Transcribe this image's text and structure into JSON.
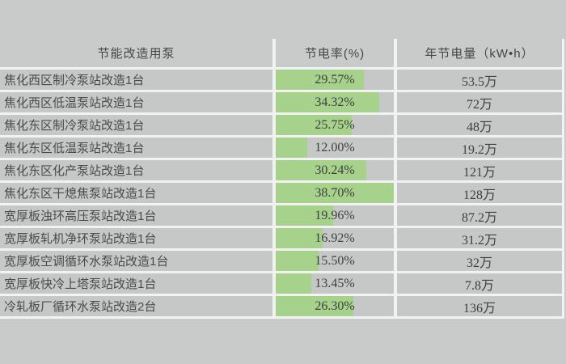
{
  "colors": {
    "page_bg": "#c9cbca",
    "cell_bg": "#c6c8c7",
    "gridline": "#f1f2f1",
    "bar_green": "#a6d28c",
    "label_text": "#4a4a4a"
  },
  "table": {
    "headers": [
      "节能改造用泵",
      "节电率(%)",
      "年节电量（kW•h）"
    ],
    "bar_axis_range": [
      2.4,
      38.7
    ],
    "rows": [
      {
        "pump": "焦化西区制冷泵站改造1台",
        "rate_label": "29.57%",
        "rate_value": 29.57,
        "annual_label": "53.5万"
      },
      {
        "pump": "焦化西区低温泵站改造1台",
        "rate_label": "34.32%",
        "rate_value": 34.32,
        "annual_label": "72万"
      },
      {
        "pump": "焦化东区制冷泵站改造1台",
        "rate_label": "25.75%",
        "rate_value": 25.75,
        "annual_label": "48万"
      },
      {
        "pump": "焦化东区低温泵站改造1台",
        "rate_label": "12.00%",
        "rate_value": 12.0,
        "annual_label": "19.2万"
      },
      {
        "pump": "焦化东区化产泵站改造1台",
        "rate_label": "30.24%",
        "rate_value": 30.24,
        "annual_label": "121万"
      },
      {
        "pump": "焦化东区干熄焦泵站改造1台",
        "rate_label": "38.70%",
        "rate_value": 38.7,
        "annual_label": "128万"
      },
      {
        "pump": "宽厚板浊环高压泵站改造1台",
        "rate_label": "19.96%",
        "rate_value": 19.96,
        "annual_label": "87.2万"
      },
      {
        "pump": "宽厚板轧机净环泵站改造1台",
        "rate_label": "16.92%",
        "rate_value": 16.92,
        "annual_label": "31.2万"
      },
      {
        "pump": "宽厚板空调循环水泵站改造1台",
        "rate_label": "15.50%",
        "rate_value": 15.5,
        "annual_label": "32万"
      },
      {
        "pump": "宽厚板快冷上塔泵站改造1台",
        "rate_label": "13.45%",
        "rate_value": 13.45,
        "annual_label": "7.8万"
      },
      {
        "pump": "冷轧板厂循环水泵站改造2台",
        "rate_label": "26.30%",
        "rate_value": 26.3,
        "annual_label": "136万"
      }
    ]
  },
  "chart_data": {
    "type": "table",
    "title": "",
    "columns": [
      "节能改造用泵",
      "节电率(%)",
      "年节电量（kW•h）"
    ],
    "categories": [
      "焦化西区制冷泵站改造1台",
      "焦化西区低温泵站改造1台",
      "焦化东区制冷泵站改造1台",
      "焦化东区低温泵站改造1台",
      "焦化东区化产泵站改造1台",
      "焦化东区干熄焦泵站改造1台",
      "宽厚板浊环高压泵站改造1台",
      "宽厚板轧机净环泵站改造1台",
      "宽厚板空调循环水泵站改造1台",
      "宽厚板快冷上塔泵站改造1台",
      "冷轧板厂循环水泵站改造2台"
    ],
    "series": [
      {
        "name": "节电率(%)",
        "values": [
          29.57,
          34.32,
          25.75,
          12.0,
          30.24,
          38.7,
          19.96,
          16.92,
          15.5,
          13.45,
          26.3
        ]
      },
      {
        "name": "年节电量(万kW•h)",
        "values": [
          53.5,
          72,
          48,
          19.2,
          121,
          128,
          87.2,
          31.2,
          32,
          7.8,
          136
        ]
      }
    ],
    "bar_color": "#a6d28c",
    "bar_axis_range": [
      2.4,
      38.7
    ],
    "legend_position": "none",
    "grid": "white-separators"
  }
}
